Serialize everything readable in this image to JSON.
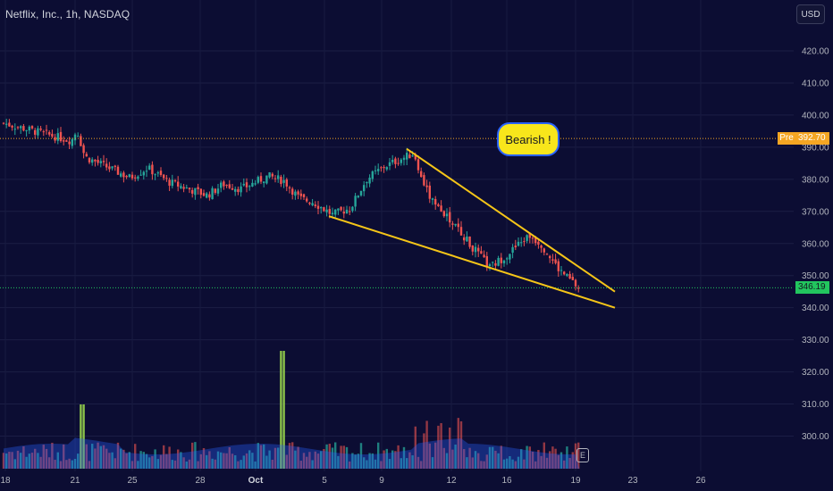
{
  "header": {
    "title": "Netflix, Inc., 1h, NASDAQ",
    "currency_button": "USD"
  },
  "annotation": {
    "text": "Bearish !"
  },
  "price_tags": {
    "pre_label": "Pre",
    "pre_value": "392.70",
    "last_value": "346.19"
  },
  "colors": {
    "background": "#0c0d33",
    "up": "#26a69a",
    "down": "#ef5350",
    "trendline": "#f5c518",
    "pre_line": "#f5a623",
    "last_line": "#22c55e"
  },
  "icons": {
    "earnings": "E"
  },
  "chart_data": {
    "type": "candlestick",
    "symbol": "Netflix, Inc.",
    "interval": "1h",
    "exchange": "NASDAQ",
    "y_axis": {
      "ticks": [
        "420.00",
        "410.00",
        "400.00",
        "390.00",
        "380.00",
        "370.00",
        "360.00",
        "350.00",
        "340.00",
        "330.00",
        "320.00",
        "310.00",
        "300.00"
      ],
      "range": [
        296,
        433
      ]
    },
    "x_axis": {
      "ticks": [
        "18",
        "21",
        "25",
        "28",
        "Oct",
        "5",
        "9",
        "12",
        "16",
        "19",
        "23",
        "26"
      ]
    },
    "pre_market_price": 392.7,
    "last_price": 346.19,
    "close_path": [
      {
        "d": "18",
        "c": 397.5
      },
      {
        "d": "21",
        "c": 392.0
      },
      {
        "d": "21.5",
        "c": 395.5
      },
      {
        "d": "22",
        "c": 387.0
      },
      {
        "d": "25",
        "c": 380.5
      },
      {
        "d": "26",
        "c": 383.5
      },
      {
        "d": "27",
        "c": 379.0
      },
      {
        "d": "28",
        "c": 375.0
      },
      {
        "d": "29",
        "c": 378.5
      },
      {
        "d": "30",
        "c": 377.0
      },
      {
        "d": "Oct 2",
        "c": 381.0
      },
      {
        "d": "Oct 3",
        "c": 379.5
      },
      {
        "d": "Oct 4",
        "c": 374.0
      },
      {
        "d": "5",
        "c": 373.0
      },
      {
        "d": "6",
        "c": 369.0
      },
      {
        "d": "7",
        "c": 371.0
      },
      {
        "d": "8",
        "c": 380.0
      },
      {
        "d": "9",
        "c": 384.0
      },
      {
        "d": "10",
        "c": 388.0
      },
      {
        "d": "11",
        "c": 376.0
      },
      {
        "d": "12",
        "c": 366.0
      },
      {
        "d": "13",
        "c": 359.0
      },
      {
        "d": "14",
        "c": 352.5
      },
      {
        "d": "15",
        "c": 356.0
      },
      {
        "d": "16",
        "c": 362.5
      },
      {
        "d": "17",
        "c": 360.0
      },
      {
        "d": "18",
        "c": 352.0
      },
      {
        "d": "19",
        "c": 346.19
      }
    ],
    "patterns": [
      {
        "name": "upper-trendline",
        "from": {
          "d": "10",
          "price": 389.5
        },
        "to": {
          "d": "22",
          "price": 345.0
        }
      },
      {
        "name": "lower-trendline",
        "from": {
          "d": "6",
          "price": 368.5
        },
        "to": {
          "d": "22",
          "price": 340.0
        }
      }
    ],
    "volume": {
      "spike_max_date": "Oct 3",
      "note": "volume histogram with moving average band"
    }
  }
}
